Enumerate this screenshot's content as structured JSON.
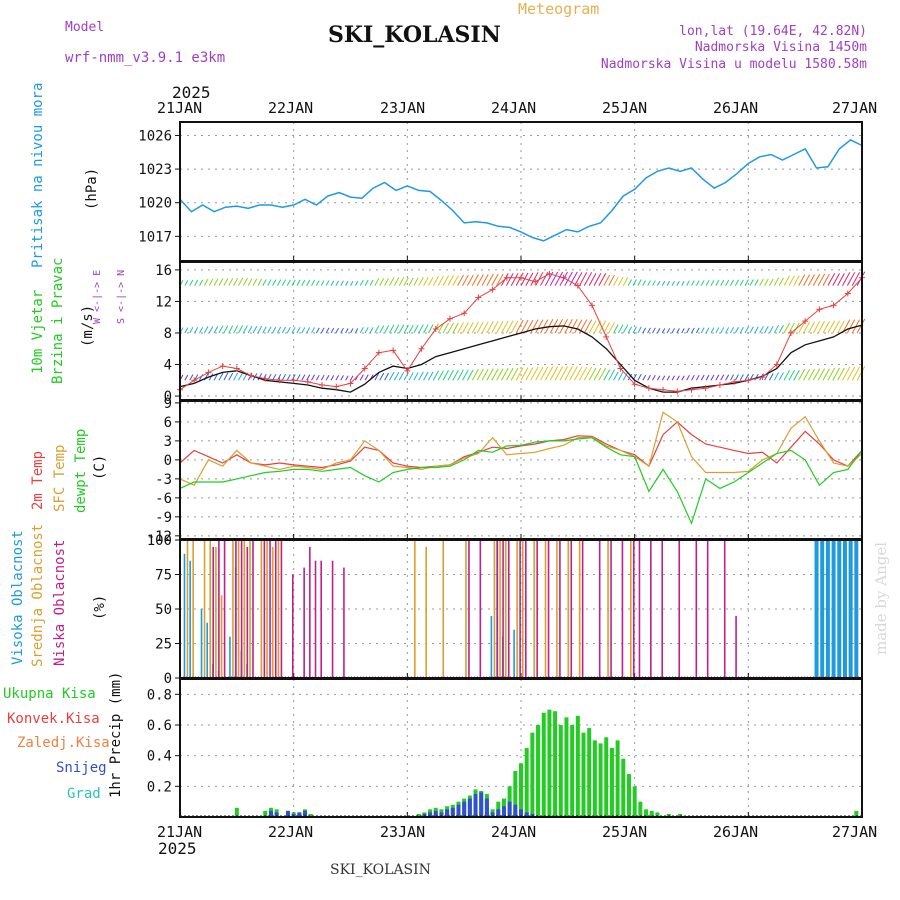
{
  "header": {
    "model_label": "Model",
    "model_name": "wrf-nmm_v3.9.1 e3km",
    "title": "SKI_KOLASIN",
    "meteogram_label": "Meteogram",
    "coords": "lon,lat (19.64E, 42.82N)",
    "elevation": "Nadmorska Visina 1450m",
    "model_elevation": "Nadmorska Visina u modelu 1580.58m"
  },
  "time_axis": {
    "year": "2025",
    "labels": [
      "21JAN",
      "22JAN",
      "23JAN",
      "24JAN",
      "25JAN",
      "26JAN",
      "27JAN"
    ]
  },
  "footer": {
    "station": "SKI_KOLASIN"
  },
  "watermark": "made by Angel",
  "panel_labels": {
    "pressure": {
      "name": "Pritisak na nivou mora",
      "unit": "(hPa)"
    },
    "wind": {
      "name1": "10m Vjetar",
      "name2": "Brzina i Pravac",
      "unit": "(m/s)",
      "dir_label": "W <-|-> E",
      "dir_label2": "S <-|-> N"
    },
    "temp": {
      "l1": "2m Temp",
      "l2": "SFC Temp",
      "l3": "dewpt Temp",
      "unit": "(C)"
    },
    "cloud": {
      "l1": "Visoka Oblacnost",
      "l2": "Srednja Oblacnost",
      "l3": "Niska Oblacnost",
      "unit": "(%)"
    },
    "precip": {
      "l1": "Ukupna Kisa",
      "l2": "Konvek.Kisa",
      "l3": "Zaledj.Kisa",
      "l4": "Snijeg",
      "l5": "Grad",
      "unit": "1hr Precip (mm)"
    }
  },
  "colors": {
    "pressure": "#1e9be0",
    "wind_speed": "#111111",
    "wind_gust": "#e84040",
    "t2m": "#e84040",
    "tsfc": "#d9a030",
    "dewpt": "#22cc22",
    "high_cloud": "#1e9be0",
    "mid_cloud": "#d9a030",
    "low_cloud": "#c0208a",
    "rain": "#22cc22",
    "snow": "#3050d0",
    "model_label": "#a040c0",
    "meteogram_label": "#e6b050"
  },
  "chart_data": [
    {
      "type": "line",
      "title": "Pritisak na nivou mora",
      "ylabel": "(hPa)",
      "ylim": [
        1014.8,
        1027.2
      ],
      "yticks": [
        1017,
        1020,
        1023,
        1026
      ],
      "x": [
        0,
        0.1,
        0.2,
        0.3,
        0.4,
        0.5,
        0.6,
        0.7,
        0.8,
        0.9,
        1,
        1.1,
        1.2,
        1.3,
        1.4,
        1.5,
        1.6,
        1.7,
        1.8,
        1.9,
        2,
        2.1,
        2.2,
        2.3,
        2.4,
        2.5,
        2.6,
        2.7,
        2.8,
        2.9,
        3,
        3.1,
        3.2,
        3.3,
        3.4,
        3.5,
        3.6,
        3.7,
        3.8,
        3.9,
        4,
        4.1,
        4.2,
        4.3,
        4.4,
        4.5,
        4.6,
        4.7,
        4.8,
        4.9,
        5,
        5.1,
        5.2,
        5.3,
        5.4,
        5.5,
        5.6,
        5.7,
        5.8,
        5.9,
        6
      ],
      "series": [
        {
          "name": "MSLP",
          "values": [
            1020.3,
            1019.2,
            1019.8,
            1019.2,
            1019.6,
            1019.7,
            1019.5,
            1019.8,
            1019.8,
            1019.6,
            1019.8,
            1020.3,
            1019.8,
            1020.6,
            1020.9,
            1020.5,
            1020.4,
            1021.3,
            1021.8,
            1021.1,
            1021.5,
            1021.1,
            1021.0,
            1020.2,
            1019.3,
            1018.2,
            1018.3,
            1018.2,
            1017.9,
            1017.8,
            1017.4,
            1016.9,
            1016.6,
            1017.1,
            1017.6,
            1017.4,
            1017.9,
            1018.2,
            1019.3,
            1020.6,
            1021.2,
            1022.2,
            1022.8,
            1023.1,
            1022.8,
            1023.1,
            1022.1,
            1021.3,
            1021.8,
            1022.6,
            1023.5,
            1024.1,
            1024.3,
            1023.8,
            1024.3,
            1024.8,
            1023.1,
            1023.2,
            1024.8,
            1025.6,
            1025.1
          ]
        }
      ]
    },
    {
      "type": "line",
      "title": "10m Vjetar - Brzina i Pravac",
      "ylabel": "(m/s)",
      "ylim": [
        -0.5,
        17
      ],
      "yticks": [
        0,
        4,
        8,
        12,
        16
      ],
      "x": [
        0,
        0.125,
        0.25,
        0.375,
        0.5,
        0.625,
        0.75,
        0.875,
        1,
        1.125,
        1.25,
        1.375,
        1.5,
        1.625,
        1.75,
        1.875,
        2,
        2.125,
        2.25,
        2.375,
        2.5,
        2.625,
        2.75,
        2.875,
        3,
        3.125,
        3.25,
        3.375,
        3.5,
        3.625,
        3.75,
        3.875,
        4,
        4.125,
        4.25,
        4.375,
        4.5,
        4.625,
        4.75,
        4.875,
        5,
        5.125,
        5.25,
        5.375,
        5.5,
        5.625,
        5.75,
        5.875,
        6
      ],
      "series": [
        {
          "name": "wind speed",
          "values": [
            1.2,
            1.6,
            2.4,
            3.0,
            3.2,
            2.6,
            2.0,
            1.8,
            1.6,
            1.4,
            1.0,
            0.8,
            0.5,
            1.5,
            3.0,
            3.8,
            3.5,
            4.0,
            5.0,
            5.5,
            6.0,
            6.5,
            7.0,
            7.5,
            8.0,
            8.5,
            8.8,
            8.9,
            8.5,
            7.5,
            6.0,
            4.0,
            2.0,
            1.0,
            0.5,
            0.5,
            1.0,
            1.2,
            1.4,
            1.6,
            2.0,
            2.5,
            3.5,
            5.5,
            6.5,
            7.0,
            7.5,
            8.5,
            9.0
          ]
        },
        {
          "name": "wind gust",
          "values": [
            0.8,
            2.0,
            3.0,
            3.8,
            3.5,
            2.6,
            2.2,
            2.0,
            2.0,
            1.8,
            1.4,
            1.2,
            1.6,
            3.5,
            5.5,
            5.8,
            3.2,
            6.0,
            8.5,
            9.8,
            10.5,
            12.5,
            13.5,
            15.0,
            15.0,
            14.5,
            15.5,
            15.0,
            14.0,
            11.5,
            7.5,
            3.5,
            1.5,
            1.0,
            0.8,
            0.6,
            0.8,
            1.0,
            1.4,
            1.8,
            2.0,
            2.4,
            4.0,
            8.0,
            9.5,
            11.0,
            11.5,
            13.0,
            15.0
          ]
        }
      ]
    },
    {
      "type": "line",
      "title": "2m Temp / SFC Temp / dewpt Temp",
      "ylabel": "(C)",
      "ylim": [
        -12.5,
        9.3
      ],
      "yticks": [
        -12,
        -9,
        -6,
        -3,
        0,
        3,
        6,
        9
      ],
      "x": [
        0,
        0.125,
        0.25,
        0.375,
        0.5,
        0.625,
        0.75,
        0.875,
        1,
        1.125,
        1.25,
        1.375,
        1.5,
        1.625,
        1.75,
        1.875,
        2,
        2.125,
        2.25,
        2.375,
        2.5,
        2.625,
        2.75,
        2.875,
        3,
        3.125,
        3.25,
        3.375,
        3.5,
        3.625,
        3.75,
        3.875,
        4,
        4.125,
        4.25,
        4.375,
        4.5,
        4.625,
        4.75,
        4.875,
        5,
        5.125,
        5.25,
        5.375,
        5.5,
        5.625,
        5.75,
        5.875,
        6
      ],
      "series": [
        {
          "name": "2m Temp",
          "values": [
            -0.5,
            1.5,
            0.5,
            -0.5,
            0.8,
            -0.5,
            -0.8,
            -0.5,
            -0.8,
            -1.0,
            -1.2,
            -0.8,
            -0.2,
            2.0,
            1.5,
            -0.5,
            -1.0,
            -1.2,
            -1.0,
            -0.8,
            0.5,
            1.2,
            2.0,
            1.8,
            2.2,
            2.5,
            3.0,
            3.2,
            3.8,
            3.7,
            2.5,
            1.5,
            0.8,
            -1.0,
            4.0,
            6.0,
            4.0,
            2.5,
            2.0,
            1.5,
            1.0,
            1.2,
            -0.5,
            2.0,
            4.5,
            2.5,
            0.0,
            -1.0,
            1.5
          ]
        },
        {
          "name": "SFC Temp",
          "values": [
            -3.0,
            -4.0,
            0.0,
            -1.0,
            1.5,
            -0.5,
            -1.0,
            -1.5,
            -1.0,
            -1.2,
            -1.5,
            -0.5,
            0.0,
            3.0,
            1.5,
            -1.0,
            -1.2,
            -1.5,
            -1.0,
            -0.8,
            0.3,
            1.0,
            3.5,
            0.8,
            1.0,
            1.2,
            1.8,
            2.3,
            3.5,
            3.6,
            2.2,
            1.5,
            0.5,
            -1.0,
            7.5,
            6.0,
            0.5,
            -2.0,
            -2.0,
            -2.0,
            -1.8,
            0.0,
            1.0,
            5.0,
            6.8,
            3.0,
            -0.5,
            -1.0,
            1.0
          ]
        },
        {
          "name": "dewpt Temp",
          "values": [
            -4.5,
            -3.5,
            -3.5,
            -3.5,
            -3.0,
            -2.5,
            -2.0,
            -1.8,
            -1.5,
            -1.5,
            -1.8,
            -1.5,
            -1.2,
            -2.5,
            -3.5,
            -2.0,
            -1.5,
            -1.2,
            -1.2,
            -1.0,
            0.0,
            1.5,
            1.2,
            2.2,
            2.3,
            2.8,
            3.0,
            3.0,
            3.3,
            3.5,
            2.0,
            0.8,
            0.5,
            -5.0,
            -1.5,
            -5.0,
            -10.0,
            -3.0,
            -4.5,
            -3.5,
            -2.0,
            -0.5,
            1.0,
            1.5,
            0.0,
            -4.0,
            -2.0,
            -1.5,
            1.5
          ]
        }
      ]
    },
    {
      "type": "bar",
      "title": "Oblacnost",
      "ylabel": "(%)",
      "ylim": [
        0,
        100
      ],
      "yticks": [
        0,
        25,
        50,
        75,
        100
      ],
      "x": [
        0.05,
        0.1,
        0.2,
        0.25,
        0.3,
        0.35,
        0.45,
        0.5,
        0.55,
        0.6,
        0.7,
        0.75,
        0.8,
        0.85,
        0.95,
        1.05,
        1.1,
        1.15,
        1.2,
        1.3,
        1.4,
        1.55,
        1.7,
        1.85,
        1.95,
        2.05,
        2.15,
        2.3,
        2.5,
        2.6,
        2.75,
        2.8,
        2.85,
        2.95,
        3.0,
        3.1,
        3.2,
        3.3,
        3.4,
        3.5,
        3.65,
        3.75,
        3.85,
        3.95,
        4.0,
        4.1,
        4.2,
        4.35,
        4.5,
        4.6,
        4.75,
        4.85,
        5.6,
        5.65,
        5.7,
        5.75,
        5.8,
        5.85,
        5.9,
        5.95
      ],
      "series": [
        {
          "name": "Visoka Oblacnost",
          "values": [
            90,
            85,
            50,
            40,
            10,
            5,
            30,
            80,
            20,
            10,
            0,
            0,
            0,
            0,
            0,
            0,
            0,
            0,
            0,
            0,
            0,
            0,
            0,
            0,
            0,
            0,
            0,
            0,
            0,
            0,
            45,
            100,
            30,
            35,
            0,
            0,
            0,
            0,
            0,
            0,
            0,
            0,
            0,
            0,
            0,
            0,
            0,
            0,
            0,
            0,
            0,
            0,
            100,
            100,
            100,
            100,
            100,
            100,
            100,
            100
          ]
        },
        {
          "name": "Srednja Oblacnost",
          "values": [
            100,
            100,
            100,
            100,
            95,
            60,
            100,
            100,
            100,
            100,
            100,
            100,
            95,
            100,
            0,
            0,
            0,
            0,
            0,
            0,
            0,
            0,
            0,
            0,
            0,
            100,
            95,
            100,
            100,
            0,
            100,
            100,
            100,
            100,
            100,
            100,
            100,
            100,
            100,
            100,
            0,
            100,
            0,
            100,
            0,
            0,
            0,
            0,
            0,
            0,
            0,
            0,
            0,
            0,
            0,
            0,
            0,
            0,
            0,
            0
          ]
        },
        {
          "name": "Niska Oblacnost",
          "values": [
            0,
            0,
            0,
            95,
            100,
            100,
            100,
            100,
            95,
            100,
            100,
            100,
            100,
            100,
            75,
            80,
            95,
            85,
            85,
            85,
            80,
            0,
            0,
            0,
            0,
            0,
            0,
            0,
            100,
            100,
            100,
            100,
            100,
            100,
            100,
            100,
            100,
            100,
            100,
            100,
            100,
            100,
            100,
            100,
            100,
            100,
            100,
            100,
            100,
            100,
            100,
            45,
            0,
            0,
            0,
            0,
            0,
            0,
            0,
            0
          ]
        }
      ]
    },
    {
      "type": "bar",
      "title": "1hr Precip",
      "ylabel": "1hr Precip (mm)",
      "ylim": [
        0,
        0.9
      ],
      "yticks": [
        0.2,
        0.4,
        0.6,
        0.8
      ],
      "x": [
        0.5,
        0.75,
        0.8,
        0.85,
        0.95,
        1.0,
        1.05,
        1.1,
        1.15,
        2.1,
        2.15,
        2.2,
        2.25,
        2.3,
        2.35,
        2.4,
        2.45,
        2.5,
        2.55,
        2.6,
        2.65,
        2.7,
        2.75,
        2.8,
        2.85,
        2.9,
        2.95,
        3.0,
        3.05,
        3.1,
        3.15,
        3.2,
        3.25,
        3.3,
        3.35,
        3.4,
        3.45,
        3.5,
        3.55,
        3.6,
        3.65,
        3.7,
        3.75,
        3.8,
        3.85,
        3.9,
        3.95,
        4.0,
        4.05,
        4.1,
        4.15,
        4.2,
        4.3,
        4.4,
        5.95
      ],
      "series": [
        {
          "name": "Ukupna Kisa",
          "values": [
            0.06,
            0.04,
            0.06,
            0.05,
            0.04,
            0.03,
            0.03,
            0.05,
            0.02,
            0.02,
            0.03,
            0.05,
            0.06,
            0.05,
            0.07,
            0.08,
            0.1,
            0.12,
            0.14,
            0.18,
            0.17,
            0.15,
            0.05,
            0.1,
            0.12,
            0.2,
            0.3,
            0.35,
            0.45,
            0.55,
            0.6,
            0.68,
            0.7,
            0.69,
            0.6,
            0.65,
            0.6,
            0.66,
            0.55,
            0.58,
            0.5,
            0.48,
            0.52,
            0.45,
            0.5,
            0.38,
            0.28,
            0.2,
            0.1,
            0.05,
            0.04,
            0.03,
            0.02,
            0.02,
            0.04
          ]
        },
        {
          "name": "Snijeg",
          "values": [
            0.0,
            0.0,
            0.04,
            0.03,
            0.04,
            0.02,
            0.03,
            0.04,
            0.0,
            0.0,
            0.02,
            0.03,
            0.04,
            0.03,
            0.05,
            0.06,
            0.08,
            0.1,
            0.12,
            0.15,
            0.16,
            0.12,
            0.03,
            0.05,
            0.07,
            0.1,
            0.08,
            0.05,
            0.03,
            0.02,
            0.0,
            0.0,
            0.0,
            0.0,
            0.0,
            0.0,
            0.0,
            0.0,
            0.0,
            0.0,
            0.0,
            0.0,
            0.0,
            0.0,
            0.0,
            0.0,
            0.0,
            0.0,
            0.0,
            0.0,
            0.0,
            0.0,
            0.0,
            0.0,
            0.0
          ]
        }
      ]
    }
  ]
}
